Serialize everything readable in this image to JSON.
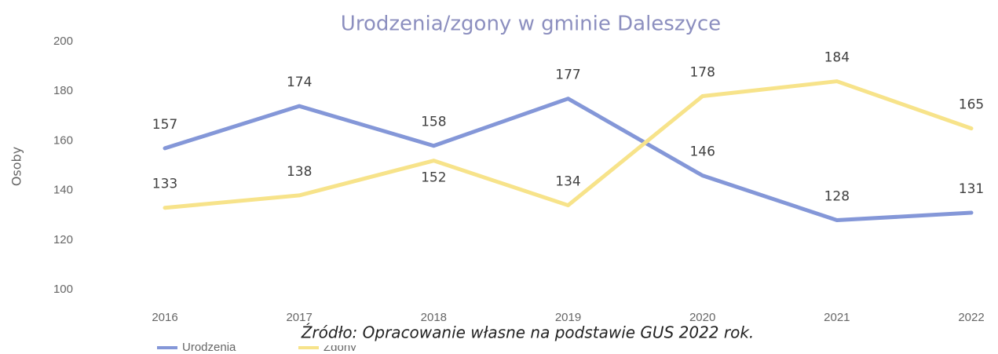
{
  "chart_data": {
    "type": "line",
    "title": "Urodzenia/zgony w gminie Daleszyce",
    "y_label": "Osoby",
    "source": "Źródło: Opracowanie własne na podstawie GUS 2022 rok.",
    "categories": [
      "2016",
      "2017",
      "2018",
      "2019",
      "2020",
      "2021",
      "2022"
    ],
    "series": [
      {
        "name": "Urodzenia",
        "color": "#8497d8",
        "values": [
          157,
          174,
          158,
          177,
          146,
          128,
          131
        ]
      },
      {
        "name": "Zgony",
        "color": "#f7e38a",
        "values": [
          133,
          138,
          152,
          134,
          178,
          184,
          165
        ]
      }
    ],
    "ylim": [
      100,
      200
    ],
    "yticks": [
      100,
      120,
      140,
      160,
      180,
      200
    ],
    "grid": false,
    "legend": "bottom"
  }
}
